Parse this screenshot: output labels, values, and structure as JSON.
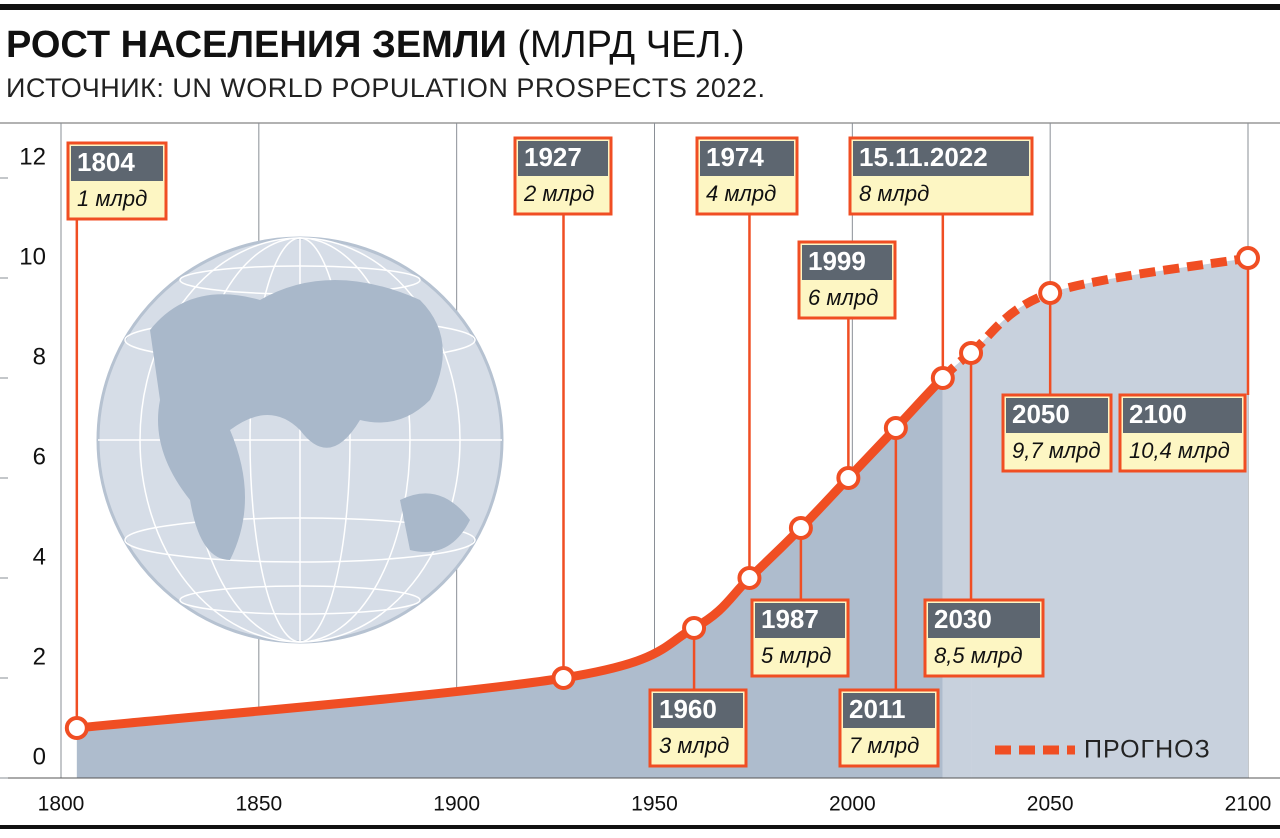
{
  "chart_data": {
    "type": "line",
    "title": "РОСТ НАСЕЛЕНИЯ ЗЕМЛИ",
    "title_unit": "(МЛРД ЧЕЛ.)",
    "subtitle": "ИСТОЧНИК: UN WORLD POPULATION PROSPECTS 2022.",
    "xlim": [
      1800,
      2100
    ],
    "xticks": [
      1800,
      1850,
      1900,
      1950,
      2000,
      2050,
      2100
    ],
    "ylim": [
      0,
      13.1
    ],
    "yticks": [
      0,
      2,
      4,
      6,
      8,
      10,
      12
    ],
    "series": [
      {
        "color": "#f04e23",
        "area_color": "#aebccd",
        "x": [
          1804,
          1927,
          1960,
          1974,
          1987,
          1999,
          2011,
          2022.87
        ],
        "values": [
          1,
          2,
          3,
          4,
          5,
          6,
          7,
          8
        ],
        "x_labels": [
          "1804",
          "1927",
          "1960",
          "1974",
          "1987",
          "1999",
          "2011",
          "15.11.2022"
        ],
        "value_labels": [
          "1 млрд",
          "2 млрд",
          "3 млрд",
          "4 млрд",
          "5 млрд",
          "6 млрд",
          "7 млрд",
          "8 млрд"
        ]
      },
      {
        "name": "ПРОГНОЗ",
        "dashed": true,
        "color": "#f04e23",
        "area_color": "#c8d1dd",
        "x": [
          2030,
          2050,
          2100
        ],
        "values": [
          8.5,
          9.7,
          10.4
        ],
        "x_labels": [
          "2030",
          "2050",
          "2100"
        ],
        "value_labels": [
          "8,5 млрд",
          "9,7 млрд",
          "10,4 млрд"
        ]
      }
    ]
  }
}
